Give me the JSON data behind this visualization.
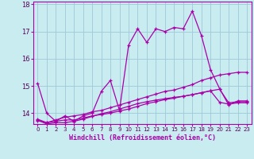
{
  "xlabel": "Windchill (Refroidissement éolien,°C)",
  "background_color": "#c8ecf0",
  "plot_bg_color": "#c8ecf0",
  "grid_color": "#a0c8d8",
  "line_color": "#aa00aa",
  "xlim": [
    -0.5,
    23.5
  ],
  "ylim": [
    13.6,
    18.1
  ],
  "yticks": [
    14,
    15,
    16,
    17,
    18
  ],
  "xticks": [
    0,
    1,
    2,
    3,
    4,
    5,
    6,
    7,
    8,
    9,
    10,
    11,
    12,
    13,
    14,
    15,
    16,
    17,
    18,
    19,
    20,
    21,
    22,
    23
  ],
  "series": [
    [
      15.1,
      14.0,
      13.7,
      13.9,
      13.7,
      13.9,
      14.0,
      14.8,
      15.2,
      14.1,
      16.5,
      17.1,
      16.6,
      17.1,
      17.0,
      17.15,
      17.1,
      17.75,
      16.85,
      15.6,
      14.9,
      14.3,
      14.45,
      14.45
    ],
    [
      13.72,
      13.65,
      13.75,
      13.85,
      13.9,
      13.95,
      14.05,
      14.1,
      14.2,
      14.3,
      14.4,
      14.5,
      14.6,
      14.7,
      14.8,
      14.85,
      14.95,
      15.05,
      15.2,
      15.3,
      15.4,
      15.45,
      15.5,
      15.5
    ],
    [
      13.78,
      13.65,
      13.7,
      13.75,
      13.75,
      13.82,
      13.9,
      13.95,
      14.0,
      14.08,
      14.15,
      14.25,
      14.35,
      14.42,
      14.5,
      14.55,
      14.62,
      14.68,
      14.75,
      14.82,
      14.88,
      14.38,
      14.42,
      14.42
    ],
    [
      13.75,
      13.6,
      13.65,
      13.65,
      13.7,
      13.78,
      13.88,
      13.98,
      14.05,
      14.15,
      14.25,
      14.35,
      14.42,
      14.48,
      14.53,
      14.58,
      14.62,
      14.68,
      14.75,
      14.82,
      14.4,
      14.33,
      14.38,
      14.38
    ]
  ]
}
